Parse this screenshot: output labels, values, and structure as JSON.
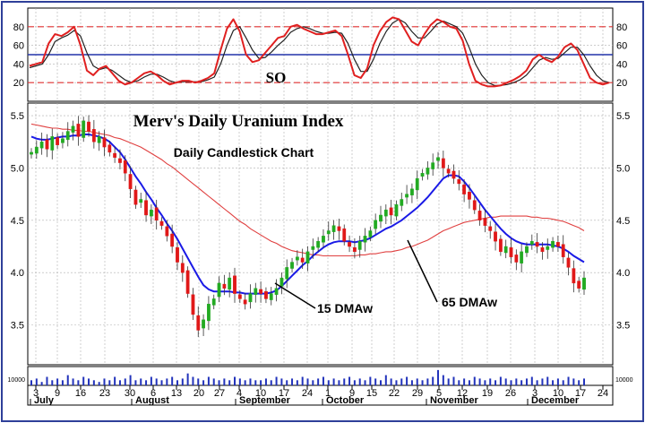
{
  "chart_data": [
    {
      "type": "line",
      "panel": "stochastic-oscillator",
      "label": "SO",
      "ylim": [
        0,
        100
      ],
      "y_ticks": [
        20,
        40,
        60,
        80
      ],
      "reference_lines": [
        {
          "value": 80,
          "style": "dashed",
          "color": "#e03030"
        },
        {
          "value": 50,
          "style": "solid",
          "color": "#2233aa"
        },
        {
          "value": 20,
          "style": "dashed",
          "color": "#e03030"
        }
      ],
      "series": [
        {
          "color": "#e02020",
          "values": [
            38,
            40,
            42,
            62,
            72,
            70,
            74,
            80,
            60,
            33,
            28,
            35,
            38,
            30,
            22,
            18,
            20,
            25,
            30,
            32,
            28,
            22,
            18,
            20,
            22,
            22,
            20,
            22,
            25,
            30,
            55,
            78,
            88,
            75,
            50,
            42,
            44,
            52,
            60,
            68,
            70,
            80,
            82,
            78,
            75,
            72,
            72,
            74,
            76,
            70,
            50,
            28,
            25,
            35,
            60,
            75,
            85,
            90,
            88,
            76,
            64,
            60,
            72,
            82,
            88,
            85,
            80,
            78,
            65,
            40,
            22,
            18,
            16,
            16,
            17,
            20,
            23,
            27,
            33,
            45,
            50,
            45,
            42,
            48,
            58,
            62,
            55,
            40,
            25,
            20,
            18,
            20
          ]
        },
        {
          "color": "#222222",
          "values": [
            36,
            38,
            40,
            50,
            64,
            68,
            71,
            76,
            70,
            52,
            38,
            34,
            36,
            33,
            28,
            23,
            20,
            22,
            26,
            29,
            29,
            26,
            22,
            20,
            21,
            21,
            21,
            21,
            23,
            26,
            40,
            60,
            76,
            80,
            68,
            55,
            46,
            47,
            53,
            60,
            66,
            74,
            78,
            80,
            78,
            75,
            73,
            73,
            74,
            73,
            62,
            45,
            32,
            32,
            45,
            62,
            75,
            84,
            88,
            84,
            75,
            68,
            68,
            75,
            83,
            86,
            83,
            80,
            73,
            58,
            40,
            28,
            20,
            17,
            17,
            18,
            20,
            23,
            28,
            36,
            44,
            47,
            45,
            46,
            52,
            58,
            58,
            50,
            38,
            28,
            22,
            20
          ]
        }
      ]
    },
    {
      "type": "candlestick",
      "panel": "price",
      "title": "Merv's Daily Uranium Index",
      "subtitle": "Daily Candlestick Chart",
      "ylim": [
        3.12,
        5.62
      ],
      "y_ticks": [
        "3.5",
        "4.0",
        "4.5",
        "5.0",
        "5.5"
      ],
      "x_ticks": [
        "3",
        "9",
        "16",
        "23",
        "30",
        "6",
        "13",
        "20",
        "27",
        "4",
        "10",
        "17",
        "24",
        "1",
        "9",
        "15",
        "22",
        "29",
        "5",
        "12",
        "19",
        "26",
        "3",
        "10",
        "17",
        "24"
      ],
      "months": [
        "July",
        "August",
        "September",
        "October",
        "November",
        "December"
      ],
      "up_color": "#22aa22",
      "down_color": "#e01818",
      "close": [
        5.15,
        5.2,
        5.25,
        5.18,
        5.3,
        5.22,
        5.28,
        5.35,
        5.4,
        5.3,
        5.45,
        5.35,
        5.25,
        5.3,
        5.2,
        5.15,
        5.1,
        5.05,
        4.95,
        4.8,
        4.65,
        4.7,
        4.55,
        4.6,
        4.5,
        4.45,
        4.35,
        4.25,
        4.1,
        4.0,
        3.8,
        3.6,
        3.45,
        3.55,
        3.7,
        3.75,
        3.9,
        3.85,
        3.95,
        3.8,
        3.75,
        3.7,
        3.8,
        3.85,
        3.8,
        3.75,
        3.8,
        3.85,
        3.95,
        4.05,
        4.1,
        4.15,
        4.1,
        4.2,
        4.25,
        4.3,
        4.35,
        4.4,
        4.45,
        4.4,
        4.3,
        4.25,
        4.2,
        4.3,
        4.35,
        4.4,
        4.5,
        4.55,
        4.6,
        4.55,
        4.65,
        4.7,
        4.75,
        4.8,
        4.9,
        4.95,
        5.0,
        5.05,
        5.1,
        5.0,
        4.95,
        4.9,
        4.85,
        4.75,
        4.7,
        4.6,
        4.5,
        4.45,
        4.4,
        4.3,
        4.2,
        4.25,
        4.15,
        4.1,
        4.2,
        4.25,
        4.3,
        4.25,
        4.2,
        4.25,
        4.3,
        4.25,
        4.15,
        4.05,
        3.9,
        3.85,
        3.95
      ],
      "overlays": [
        {
          "name": "15 DMAw",
          "color": "#1a1ae6",
          "values": [
            5.3,
            5.28,
            5.27,
            5.27,
            5.28,
            5.29,
            5.3,
            5.3,
            5.31,
            5.31,
            5.32,
            5.32,
            5.31,
            5.3,
            5.28,
            5.25,
            5.2,
            5.15,
            5.08,
            5.0,
            4.92,
            4.85,
            4.77,
            4.7,
            4.62,
            4.55,
            4.47,
            4.4,
            4.32,
            4.23,
            4.14,
            4.05,
            3.96,
            3.88,
            3.84,
            3.82,
            3.82,
            3.82,
            3.82,
            3.81,
            3.81,
            3.8,
            3.8,
            3.8,
            3.8,
            3.8,
            3.81,
            3.83,
            3.87,
            3.92,
            3.97,
            4.02,
            4.07,
            4.11,
            4.16,
            4.2,
            4.24,
            4.27,
            4.29,
            4.3,
            4.3,
            4.3,
            4.29,
            4.3,
            4.31,
            4.33,
            4.36,
            4.39,
            4.42,
            4.44,
            4.47,
            4.5,
            4.54,
            4.58,
            4.62,
            4.67,
            4.72,
            4.78,
            4.84,
            4.9,
            4.93,
            4.93,
            4.92,
            4.87,
            4.81,
            4.74,
            4.67,
            4.6,
            4.54,
            4.48,
            4.42,
            4.37,
            4.33,
            4.3,
            4.28,
            4.27,
            4.27,
            4.27,
            4.27,
            4.27,
            4.26,
            4.25,
            4.23,
            4.2,
            4.16,
            4.13,
            4.1
          ]
        },
        {
          "name": "65 DMAw",
          "color": "#e04040",
          "values": [
            5.42,
            5.41,
            5.4,
            5.39,
            5.38,
            5.38,
            5.37,
            5.37,
            5.36,
            5.36,
            5.35,
            5.35,
            5.34,
            5.33,
            5.32,
            5.31,
            5.29,
            5.28,
            5.26,
            5.24,
            5.22,
            5.2,
            5.17,
            5.14,
            5.11,
            5.08,
            5.04,
            5.01,
            4.97,
            4.93,
            4.89,
            4.85,
            4.81,
            4.77,
            4.73,
            4.69,
            4.65,
            4.61,
            4.57,
            4.53,
            4.49,
            4.46,
            4.42,
            4.39,
            4.36,
            4.33,
            4.3,
            4.28,
            4.25,
            4.23,
            4.21,
            4.2,
            4.19,
            4.18,
            4.17,
            4.17,
            4.16,
            4.16,
            4.16,
            4.16,
            4.16,
            4.16,
            4.16,
            4.17,
            4.17,
            4.18,
            4.18,
            4.19,
            4.2,
            4.2,
            4.21,
            4.22,
            4.24,
            4.25,
            4.27,
            4.29,
            4.31,
            4.34,
            4.37,
            4.4,
            4.42,
            4.44,
            4.46,
            4.48,
            4.49,
            4.5,
            4.51,
            4.52,
            4.53,
            4.53,
            4.54,
            4.54,
            4.54,
            4.54,
            4.54,
            4.54,
            4.53,
            4.53,
            4.52,
            4.52,
            4.51,
            4.5,
            4.49,
            4.47,
            4.45,
            4.43,
            4.4
          ]
        }
      ],
      "annotations": [
        "15 DMAw",
        "65 DMAw"
      ]
    },
    {
      "type": "bar",
      "panel": "volume",
      "y_ticks": [
        "10000"
      ],
      "color": "#2233bb",
      "values": [
        3,
        4,
        2,
        5,
        3,
        4,
        3,
        6,
        4,
        3,
        5,
        4,
        3,
        2,
        4,
        3,
        5,
        3,
        4,
        6,
        3,
        4,
        3,
        5,
        4,
        3,
        4,
        5,
        3,
        4,
        7,
        5,
        4,
        3,
        5,
        4,
        3,
        4,
        3,
        5,
        4,
        3,
        4,
        3,
        3,
        4,
        3,
        5,
        4,
        3,
        4,
        3,
        5,
        4,
        3,
        4,
        5,
        3,
        4,
        3,
        4,
        5,
        3,
        4,
        3,
        5,
        4,
        3,
        6,
        4,
        3,
        4,
        5,
        3,
        4,
        3,
        4,
        5,
        9,
        6,
        4,
        5,
        3,
        4,
        3,
        5,
        4,
        3,
        4,
        3,
        5,
        4,
        3,
        4,
        3,
        4,
        5,
        3,
        4,
        5,
        3,
        4,
        3,
        5,
        4,
        3,
        4
      ]
    }
  ]
}
